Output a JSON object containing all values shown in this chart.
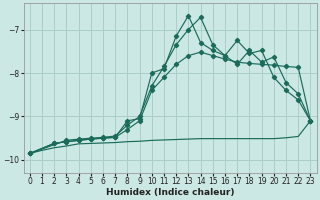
{
  "xlabel": "Humidex (Indice chaleur)",
  "bg_color": "#cce8e4",
  "line_color": "#1a6b5a",
  "grid_color": "#aacfc8",
  "xlim": [
    -0.5,
    23.5
  ],
  "ylim": [
    -10.3,
    -6.4
  ],
  "yticks": [
    -10,
    -9,
    -8,
    -7
  ],
  "xticks": [
    0,
    1,
    2,
    3,
    4,
    5,
    6,
    7,
    8,
    9,
    10,
    11,
    12,
    13,
    14,
    15,
    16,
    17,
    18,
    19,
    20,
    21,
    22,
    23
  ],
  "series_flat_x": [
    0,
    1,
    2,
    3,
    4,
    5,
    6,
    7,
    8,
    9,
    10,
    11,
    12,
    13,
    14,
    15,
    16,
    17,
    18,
    19,
    20,
    21,
    22,
    23
  ],
  "series_flat_y": [
    -9.85,
    -9.78,
    -9.72,
    -9.68,
    -9.63,
    -9.62,
    -9.61,
    -9.6,
    -9.58,
    -9.57,
    -9.55,
    -9.54,
    -9.53,
    -9.52,
    -9.51,
    -9.51,
    -9.51,
    -9.51,
    -9.51,
    -9.51,
    -9.51,
    -9.49,
    -9.46,
    -9.1
  ],
  "series_line1_x": [
    0,
    2,
    3,
    4,
    5,
    6,
    7,
    8,
    9,
    10,
    11,
    12,
    13,
    14,
    15,
    16,
    17,
    18,
    19,
    20,
    21,
    22,
    23
  ],
  "series_line1_y": [
    -9.85,
    -9.62,
    -9.58,
    -9.55,
    -9.52,
    -9.5,
    -9.48,
    -9.3,
    -9.1,
    -8.4,
    -8.1,
    -7.8,
    -7.6,
    -7.52,
    -7.6,
    -7.68,
    -7.75,
    -7.78,
    -7.8,
    -7.82,
    -7.85,
    -7.87,
    -9.1
  ],
  "series_jagged_x": [
    0,
    2,
    3,
    4,
    5,
    6,
    7,
    8,
    9,
    10,
    11,
    12,
    13,
    14,
    15,
    16,
    17,
    18,
    19,
    20,
    21,
    22,
    23
  ],
  "series_jagged_y": [
    -9.85,
    -9.62,
    -9.58,
    -9.55,
    -9.52,
    -9.5,
    -9.48,
    -9.1,
    -9.05,
    -8.0,
    -7.9,
    -7.15,
    -6.68,
    -7.3,
    -7.48,
    -7.6,
    -7.25,
    -7.55,
    -7.48,
    -8.1,
    -8.4,
    -8.62,
    -9.1
  ],
  "series_line2_x": [
    0,
    3,
    4,
    5,
    6,
    7,
    8,
    9,
    10,
    11,
    12,
    13,
    14,
    15,
    16,
    17,
    18,
    19,
    20,
    21,
    22,
    23
  ],
  "series_line2_y": [
    -9.85,
    -9.55,
    -9.52,
    -9.5,
    -9.48,
    -9.45,
    -9.2,
    -9.0,
    -8.3,
    -7.85,
    -7.35,
    -7.0,
    -6.72,
    -7.35,
    -7.6,
    -7.8,
    -7.48,
    -7.75,
    -7.63,
    -8.22,
    -8.48,
    -9.1
  ]
}
